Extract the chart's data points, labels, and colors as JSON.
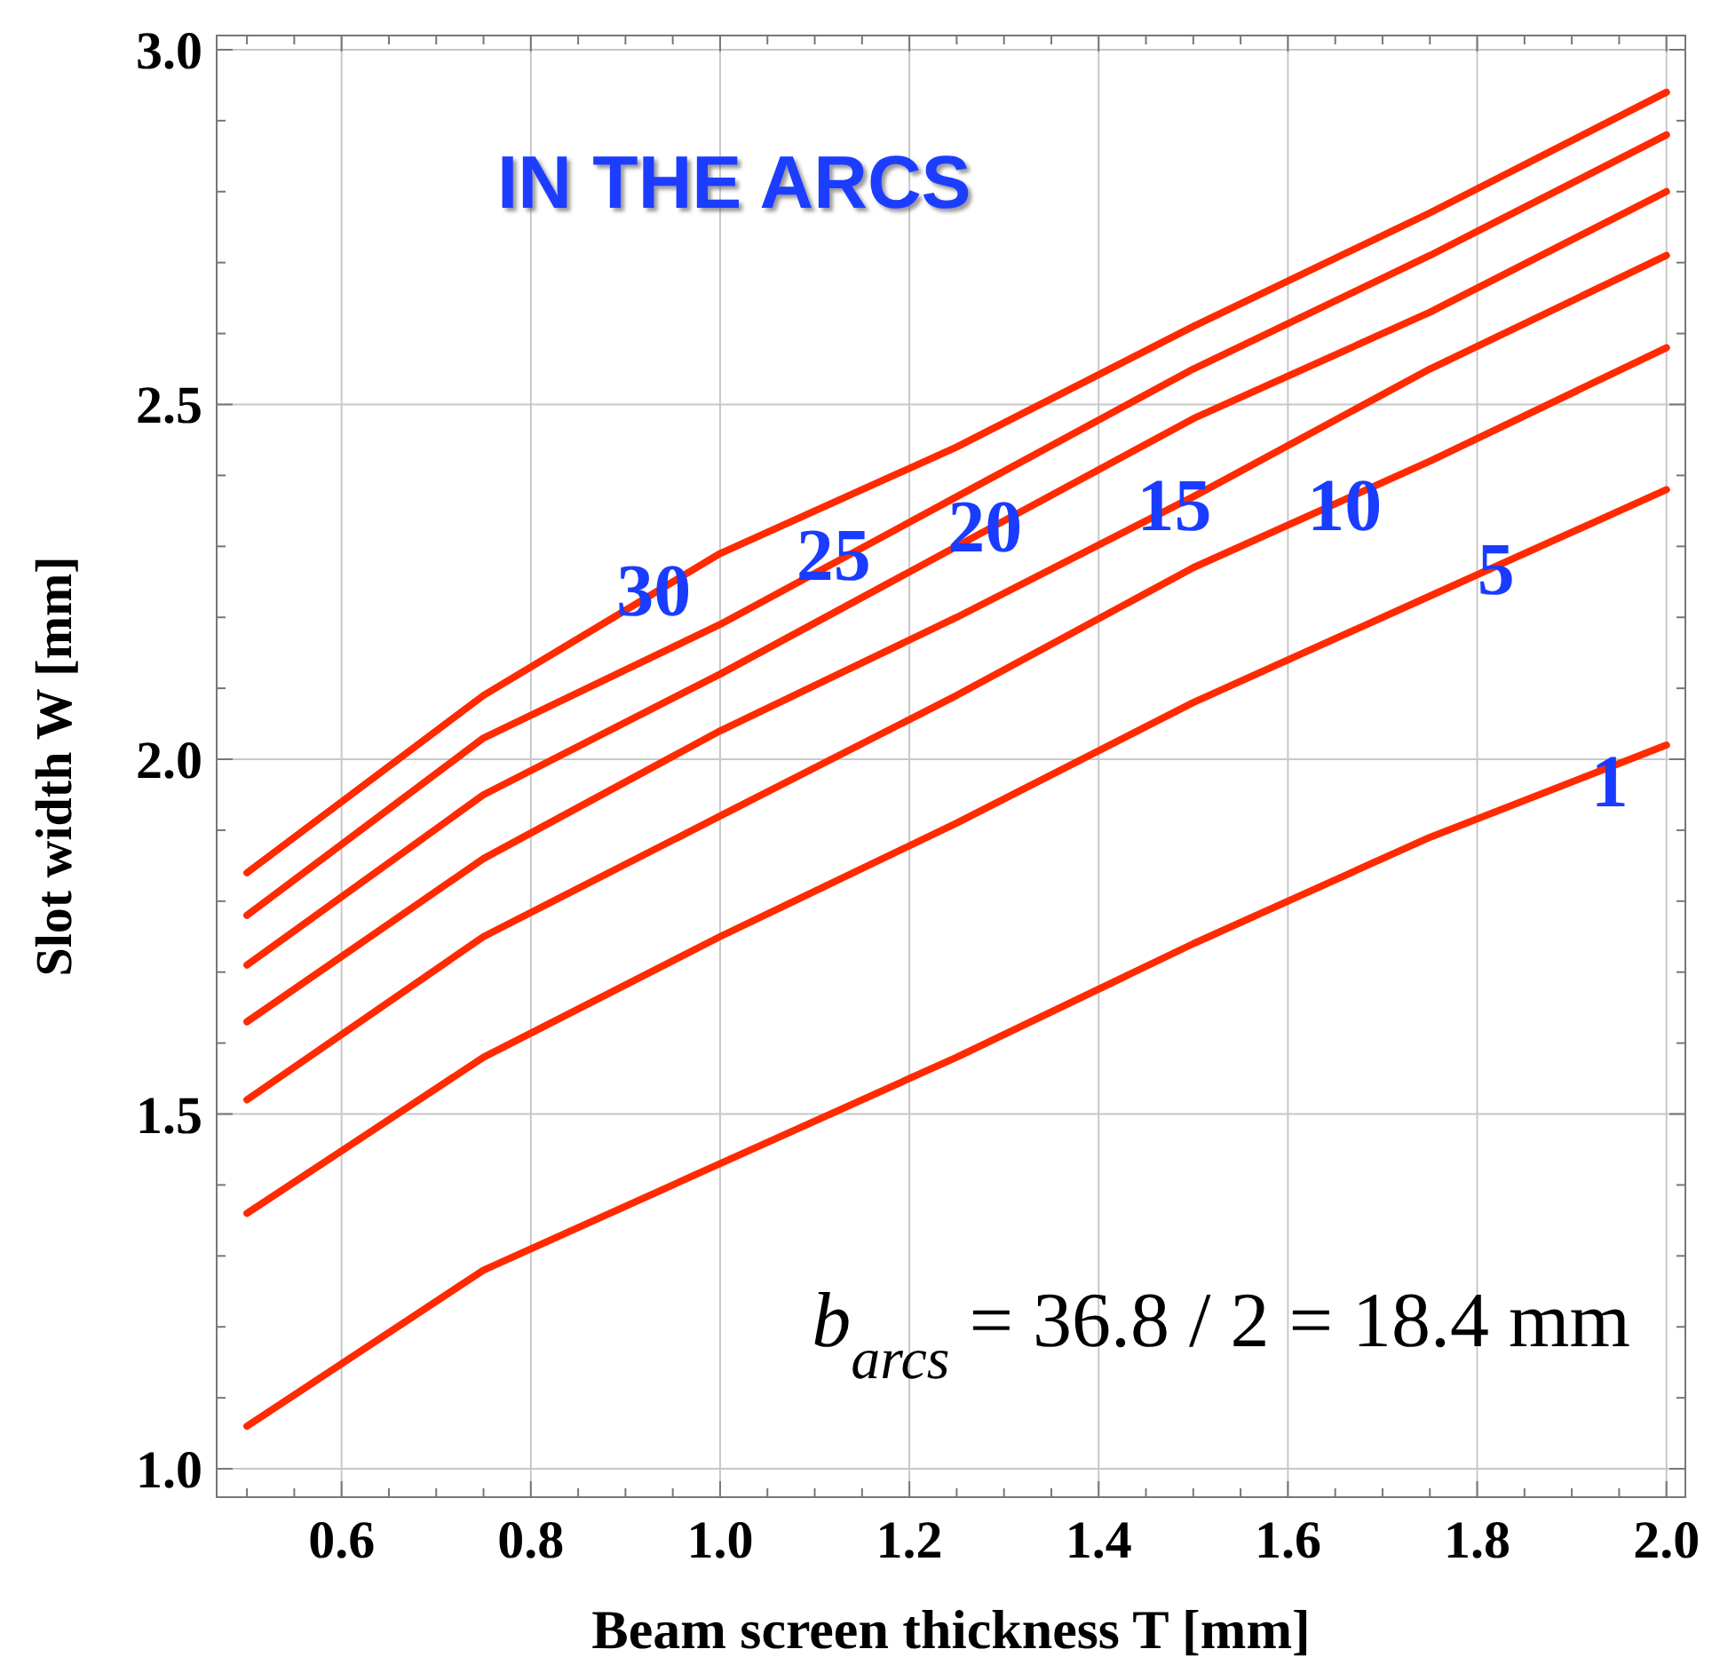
{
  "chart_data": {
    "type": "line",
    "title": "IN THE ARCS",
    "xlabel": "Beam screen thickness T [mm]",
    "ylabel": "Slot width W [mm]",
    "x": [
      0.5,
      0.75,
      1.0,
      1.25,
      1.5,
      1.75,
      2.0
    ],
    "series": [
      {
        "color": "#ff2a00",
        "values": [
          1.84,
          2.09,
          2.29,
          2.44,
          2.61,
          2.77,
          2.94
        ]
      },
      {
        "color": "#ff2a00",
        "values": [
          1.78,
          2.03,
          2.19,
          2.37,
          2.55,
          2.71,
          2.88
        ]
      },
      {
        "color": "#ff2a00",
        "values": [
          1.71,
          1.95,
          2.12,
          2.3,
          2.48,
          2.63,
          2.8
        ]
      },
      {
        "color": "#ff2a00",
        "values": [
          1.63,
          1.86,
          2.04,
          2.2,
          2.37,
          2.55,
          2.71
        ]
      },
      {
        "color": "#ff2a00",
        "values": [
          1.52,
          1.75,
          1.92,
          2.09,
          2.27,
          2.42,
          2.58
        ]
      },
      {
        "color": "#ff2a00",
        "values": [
          1.36,
          1.58,
          1.75,
          1.91,
          2.08,
          2.23,
          2.38
        ]
      },
      {
        "color": "#ff2a00",
        "values": [
          1.06,
          1.28,
          1.43,
          1.58,
          1.74,
          1.89,
          2.02
        ]
      }
    ],
    "xlim": [
      0.468,
      2.02
    ],
    "ylim": [
      0.96,
      3.02
    ],
    "xticks": [
      {
        "value": 0.5,
        "label": null
      },
      {
        "value": 0.55,
        "label": null
      },
      0.6,
      {
        "value": 0.65,
        "label": null
      },
      {
        "value": 0.7,
        "label": null
      },
      {
        "value": 0.75,
        "label": null
      },
      0.8,
      {
        "value": 0.85,
        "label": null
      },
      {
        "value": 0.9,
        "label": null
      },
      {
        "value": 0.95,
        "label": null
      },
      {
        "value": 1,
        "label": "1.0"
      },
      {
        "value": 1.05,
        "label": null
      },
      {
        "value": 1.1,
        "label": null
      },
      {
        "value": 1.15,
        "label": null
      },
      1.2,
      {
        "value": 1.25,
        "label": null
      },
      {
        "value": 1.3,
        "label": null
      },
      {
        "value": 1.35,
        "label": null
      },
      1.4,
      {
        "value": 1.45,
        "label": null
      },
      {
        "value": 1.5,
        "label": null
      },
      {
        "value": 1.55,
        "label": null
      },
      1.6,
      {
        "value": 1.65,
        "label": null
      },
      {
        "value": 1.7,
        "label": null
      },
      {
        "value": 1.75,
        "label": null
      },
      1.8,
      {
        "value": 1.85,
        "label": null
      },
      {
        "value": 1.9,
        "label": null
      },
      {
        "value": 1.95,
        "label": null
      },
      {
        "value": 2,
        "label": "2.0"
      }
    ],
    "yticks": [
      {
        "value": 1,
        "label": "1.0"
      },
      {
        "value": 1.1,
        "label": null
      },
      {
        "value": 1.2,
        "label": null
      },
      {
        "value": 1.3,
        "label": null
      },
      {
        "value": 1.4,
        "label": null
      },
      1.5,
      {
        "value": 1.6,
        "label": null
      },
      {
        "value": 1.7,
        "label": null
      },
      {
        "value": 1.8,
        "label": null
      },
      {
        "value": 1.9,
        "label": null
      },
      {
        "value": 2,
        "label": "2.0"
      },
      {
        "value": 2.1,
        "label": null
      },
      {
        "value": 2.2,
        "label": null
      },
      {
        "value": 2.3,
        "label": null
      },
      {
        "value": 2.4,
        "label": null
      },
      2.5,
      {
        "value": 2.6,
        "label": null
      },
      {
        "value": 2.7,
        "label": null
      },
      {
        "value": 2.8,
        "label": null
      },
      {
        "value": 2.9,
        "label": null
      },
      {
        "value": 3,
        "label": "3.0"
      }
    ],
    "grid": true,
    "line_style": "solid",
    "marker": "none",
    "annotations": [
      {
        "text": "30",
        "x": 0.93,
        "y": 2.24
      },
      {
        "text": "25",
        "x": 1.12,
        "y": 2.29
      },
      {
        "text": "20",
        "x": 1.28,
        "y": 2.33
      },
      {
        "text": "15",
        "x": 1.48,
        "y": 2.36
      },
      {
        "text": "10",
        "x": 1.66,
        "y": 2.36
      },
      {
        "text": "5",
        "x": 1.82,
        "y": 2.27
      },
      {
        "text": "1",
        "x": 1.94,
        "y": 1.97
      },
      "b$_{arcs}$ = 36.8 / 2 = 18.4 mm"
    ]
  }
}
